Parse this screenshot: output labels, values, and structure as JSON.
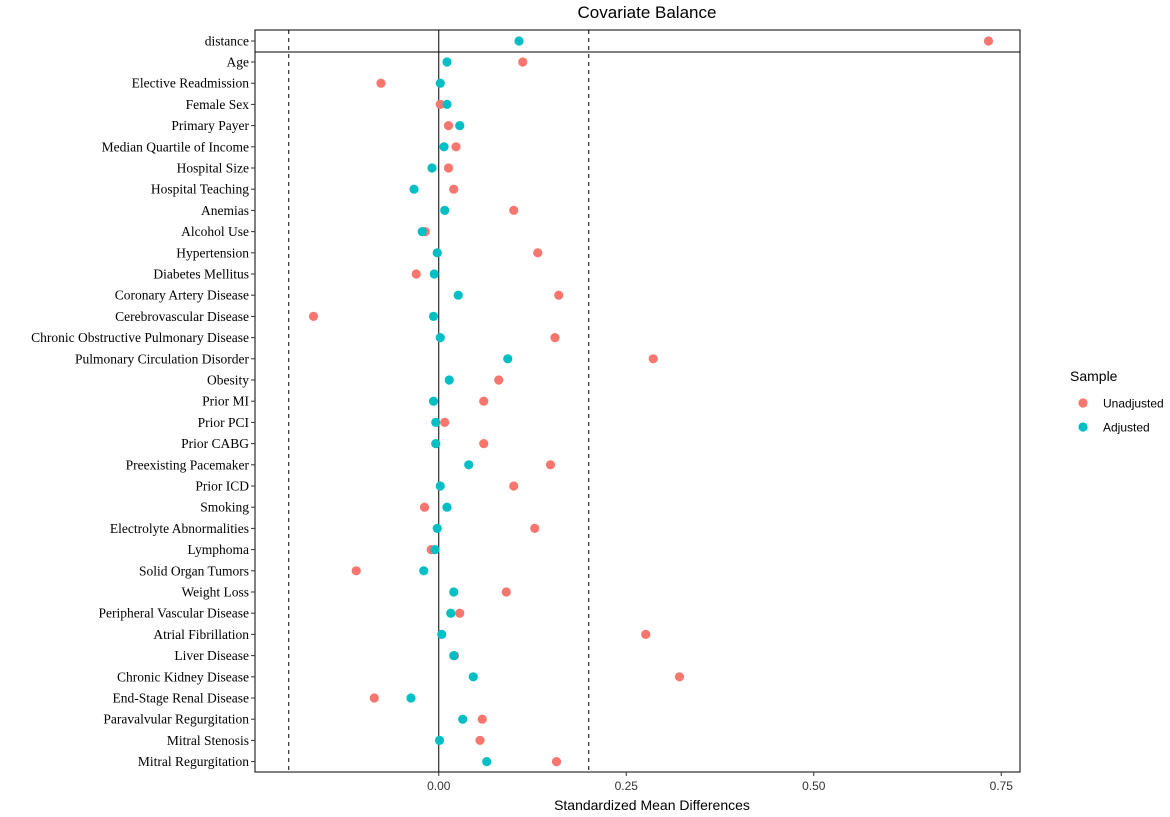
{
  "chart_data": {
    "type": "scatter",
    "title": "Covariate Balance",
    "xlabel": "Standardized Mean Differences",
    "ylabel": "",
    "xlim": [
      -0.245,
      0.775
    ],
    "x_ticks": [
      0.0,
      0.25,
      0.5,
      0.75
    ],
    "x_tick_labels": [
      "0.00",
      "0.25",
      "0.50",
      "0.75"
    ],
    "threshold_lines": [
      -0.2,
      0.2
    ],
    "zero_line": 0,
    "grid": false,
    "legend": {
      "title": "Sample",
      "position": "right",
      "entries": [
        {
          "label": "Unadjusted",
          "color": "#F8766D"
        },
        {
          "label": "Adjusted",
          "color": "#00BFC4"
        }
      ]
    },
    "categories": [
      "distance",
      "Age",
      "Elective Readmission",
      "Female Sex",
      "Primary Payer",
      "Median Quartile of Income",
      "Hospital Size",
      "Hospital Teaching",
      "Anemias",
      "Alcohol Use",
      "Hypertension",
      "Diabetes Mellitus",
      "Coronary Artery Disease",
      "Cerebrovascular Disease",
      "Chronic Obstructive Pulmonary Disease",
      "Pulmonary Circulation Disorder",
      "Obesity",
      "Prior MI",
      "Prior PCI",
      "Prior CABG",
      "Preexisting Pacemaker",
      "Prior ICD",
      "Smoking",
      "Electrolyte Abnormalities",
      "Lymphoma",
      "Solid Organ Tumors",
      "Weight Loss",
      "Peripheral Vascular Disease",
      "Atrial Fibrillation",
      "Liver Disease",
      "Chronic Kidney Disease",
      "End-Stage Renal Disease",
      "Paravalvular Regurgitation",
      "Mitral Stenosis",
      "Mitral Regurgitation"
    ],
    "series": [
      {
        "name": "Unadjusted",
        "color": "#F8766D",
        "values": [
          0.733,
          0.112,
          -0.077,
          0.002,
          0.013,
          0.023,
          0.013,
          0.02,
          0.1,
          -0.018,
          0.132,
          -0.03,
          0.16,
          -0.167,
          0.155,
          0.286,
          0.08,
          0.06,
          0.008,
          0.06,
          0.149,
          0.1,
          -0.019,
          0.128,
          -0.01,
          -0.11,
          0.09,
          0.028,
          0.276,
          0.021,
          0.321,
          -0.086,
          0.058,
          0.055,
          0.157
        ]
      },
      {
        "name": "Adjusted",
        "color": "#00BFC4",
        "values": [
          0.107,
          0.011,
          0.002,
          0.011,
          0.028,
          0.007,
          -0.009,
          -0.033,
          0.008,
          -0.022,
          -0.002,
          -0.006,
          0.026,
          -0.007,
          0.002,
          0.092,
          0.014,
          -0.007,
          -0.004,
          -0.004,
          0.04,
          0.002,
          0.011,
          -0.002,
          -0.005,
          -0.02,
          0.02,
          0.016,
          0.004,
          0.02,
          0.046,
          -0.037,
          0.032,
          0.001,
          0.064
        ]
      }
    ]
  }
}
